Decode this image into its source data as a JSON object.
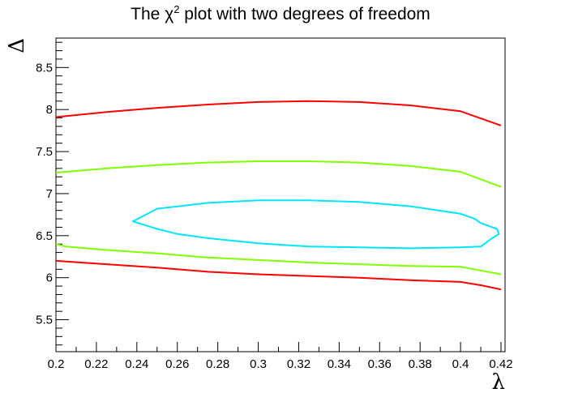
{
  "chart_data": {
    "type": "line",
    "title_prefix": "The ",
    "title_symbol": "χ",
    "title_exponent": "2",
    "title_suffix": " plot with two degrees of freedom",
    "xlabel": "λ",
    "ylabel": "Δ",
    "xlim": [
      0.2,
      0.422
    ],
    "ylim": [
      5.12,
      8.85
    ],
    "x_ticks": [
      "0.2",
      "0.22",
      "0.24",
      "0.26",
      "0.28",
      "0.3",
      "0.32",
      "0.34",
      "0.36",
      "0.38",
      "0.4",
      "0.42"
    ],
    "y_ticks": [
      "5.5",
      "6",
      "6.5",
      "7",
      "7.5",
      "8",
      "8.5"
    ],
    "grid": false,
    "series": [
      {
        "color": "#ff0000",
        "x": [
          0.2,
          0.225,
          0.25,
          0.275,
          0.3,
          0.325,
          0.35,
          0.375,
          0.4,
          0.42
        ],
        "y": [
          7.91,
          7.97,
          8.02,
          8.06,
          8.09,
          8.1,
          8.09,
          8.05,
          7.98,
          7.81
        ]
      },
      {
        "color": "#ff0000",
        "x": [
          0.2,
          0.225,
          0.25,
          0.275,
          0.3,
          0.325,
          0.35,
          0.375,
          0.4,
          0.41,
          0.42
        ],
        "y": [
          6.2,
          6.16,
          6.12,
          6.07,
          6.04,
          6.02,
          6.0,
          5.97,
          5.95,
          5.91,
          5.86
        ]
      },
      {
        "color": "#80ff00",
        "x": [
          0.2,
          0.225,
          0.25,
          0.275,
          0.3,
          0.325,
          0.35,
          0.375,
          0.4,
          0.42
        ],
        "y": [
          7.25,
          7.3,
          7.34,
          7.37,
          7.385,
          7.385,
          7.37,
          7.33,
          7.26,
          7.08
        ]
      },
      {
        "color": "#80ff00",
        "x": [
          0.2,
          0.205,
          0.225,
          0.25,
          0.275,
          0.3,
          0.325,
          0.35,
          0.375,
          0.4,
          0.42
        ],
        "y": [
          6.4,
          6.37,
          6.33,
          6.29,
          6.24,
          6.21,
          6.18,
          6.16,
          6.14,
          6.13,
          6.04
        ]
      },
      {
        "color": "#00e5ff",
        "closed": true,
        "x": [
          0.238,
          0.25,
          0.275,
          0.3,
          0.325,
          0.35,
          0.375,
          0.4,
          0.407,
          0.41,
          0.418,
          0.419,
          0.415,
          0.41,
          0.4,
          0.375,
          0.35,
          0.325,
          0.3,
          0.275,
          0.26,
          0.25,
          0.238
        ],
        "y": [
          6.67,
          6.82,
          6.89,
          6.92,
          6.92,
          6.9,
          6.85,
          6.76,
          6.7,
          6.65,
          6.58,
          6.52,
          6.46,
          6.37,
          6.36,
          6.35,
          6.36,
          6.37,
          6.41,
          6.47,
          6.52,
          6.58,
          6.67
        ]
      }
    ]
  }
}
